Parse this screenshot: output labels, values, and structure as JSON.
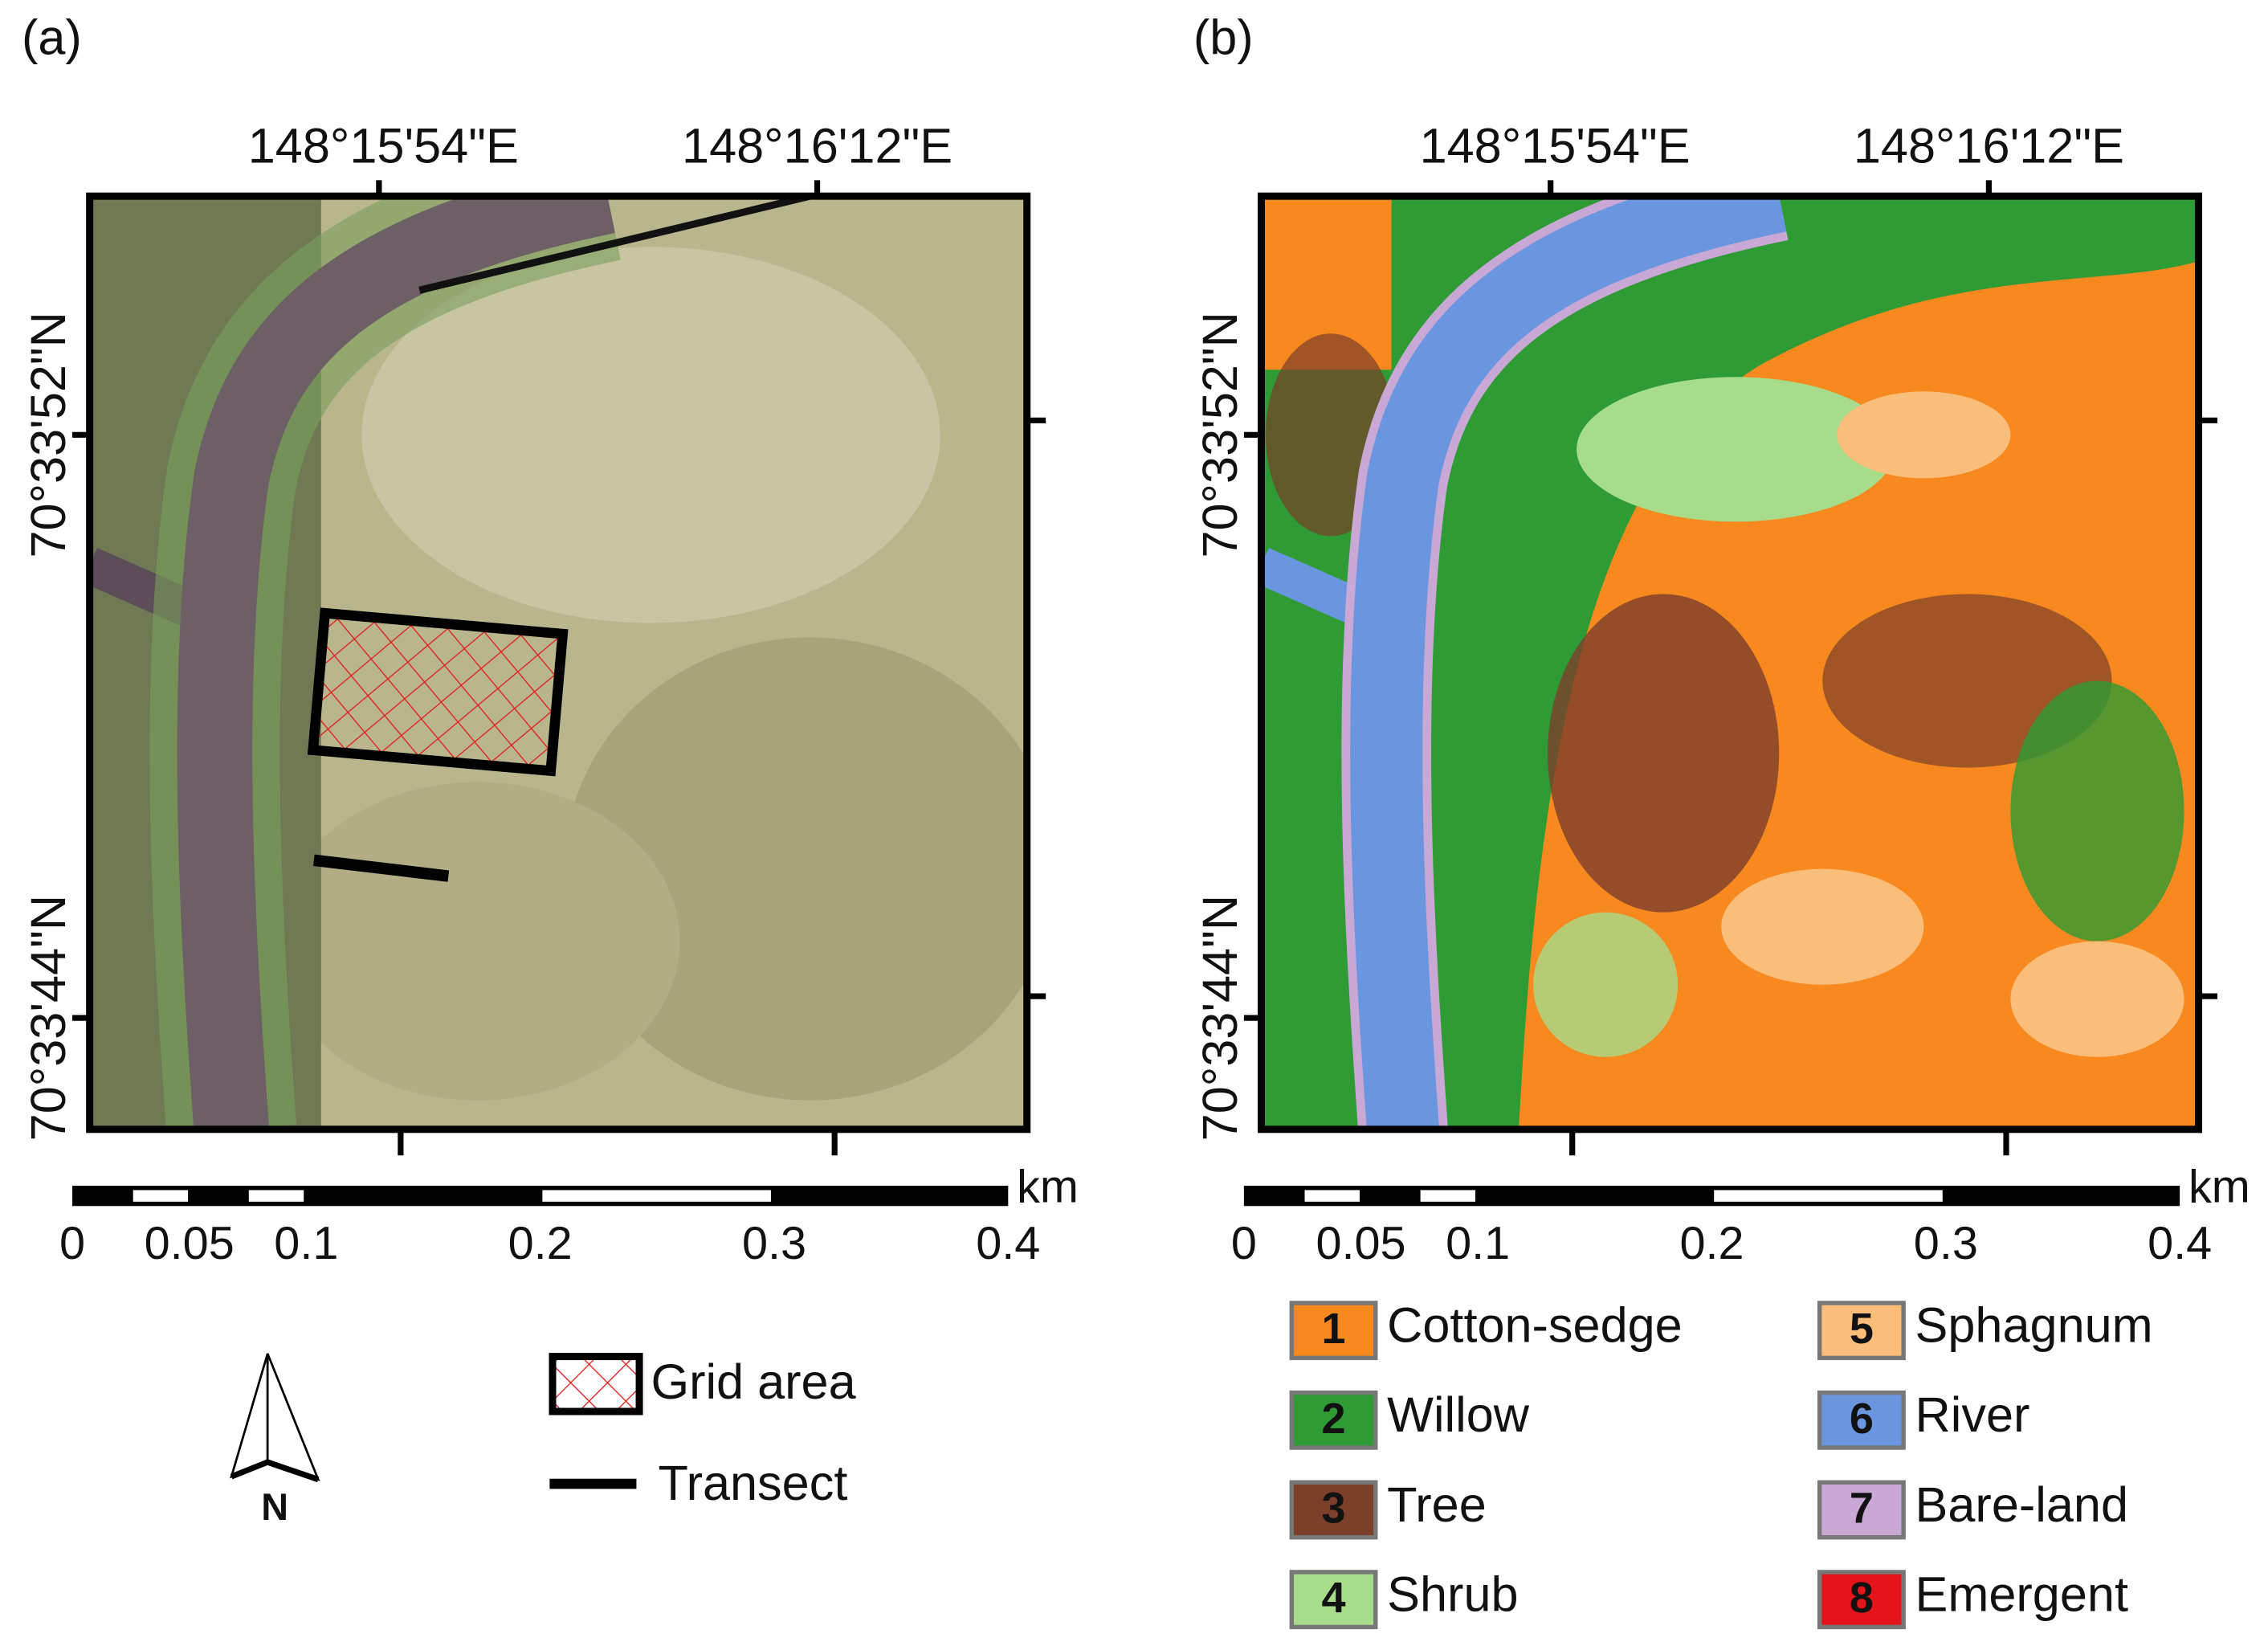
{
  "panels": [
    {
      "label": "(a)",
      "lon_labels": [
        "148°15'54\"E",
        "148°16'12\"E"
      ],
      "lat_labels": [
        "70°33'52\"N",
        "70°33'44\"N"
      ],
      "scale": {
        "ticks": [
          0,
          0.05,
          0.1,
          0.2,
          0.3,
          0.4
        ],
        "unit": "km"
      },
      "north": "N",
      "legend": [
        {
          "label": "Grid area"
        },
        {
          "label": "Transect"
        }
      ]
    },
    {
      "label": "(b)",
      "lon_labels": [
        "148°15'54\"E",
        "148°16'12\"E"
      ],
      "lat_labels": [
        "70°33'52\"N",
        "70°33'44\"N"
      ],
      "scale": {
        "ticks": [
          0,
          0.05,
          0.1,
          0.2,
          0.3,
          0.4
        ],
        "unit": "km"
      },
      "legend": [
        {
          "number": "1",
          "label": "Cotton-sedge",
          "color": "#f7891f"
        },
        {
          "number": "2",
          "label": "Willow",
          "color": "#2e9b35"
        },
        {
          "number": "3",
          "label": "Tree",
          "color": "#7b3f2a"
        },
        {
          "number": "4",
          "label": "Shrub",
          "color": "#a6dc8a"
        },
        {
          "number": "5",
          "label": "Sphagnum",
          "color": "#fbbd7a"
        },
        {
          "number": "6",
          "label": "River",
          "color": "#6a96e0"
        },
        {
          "number": "7",
          "label": "Bare-land",
          "color": "#c9a8d6"
        },
        {
          "number": "8",
          "label": "Emergent",
          "color": "#e3151b"
        }
      ]
    }
  ]
}
